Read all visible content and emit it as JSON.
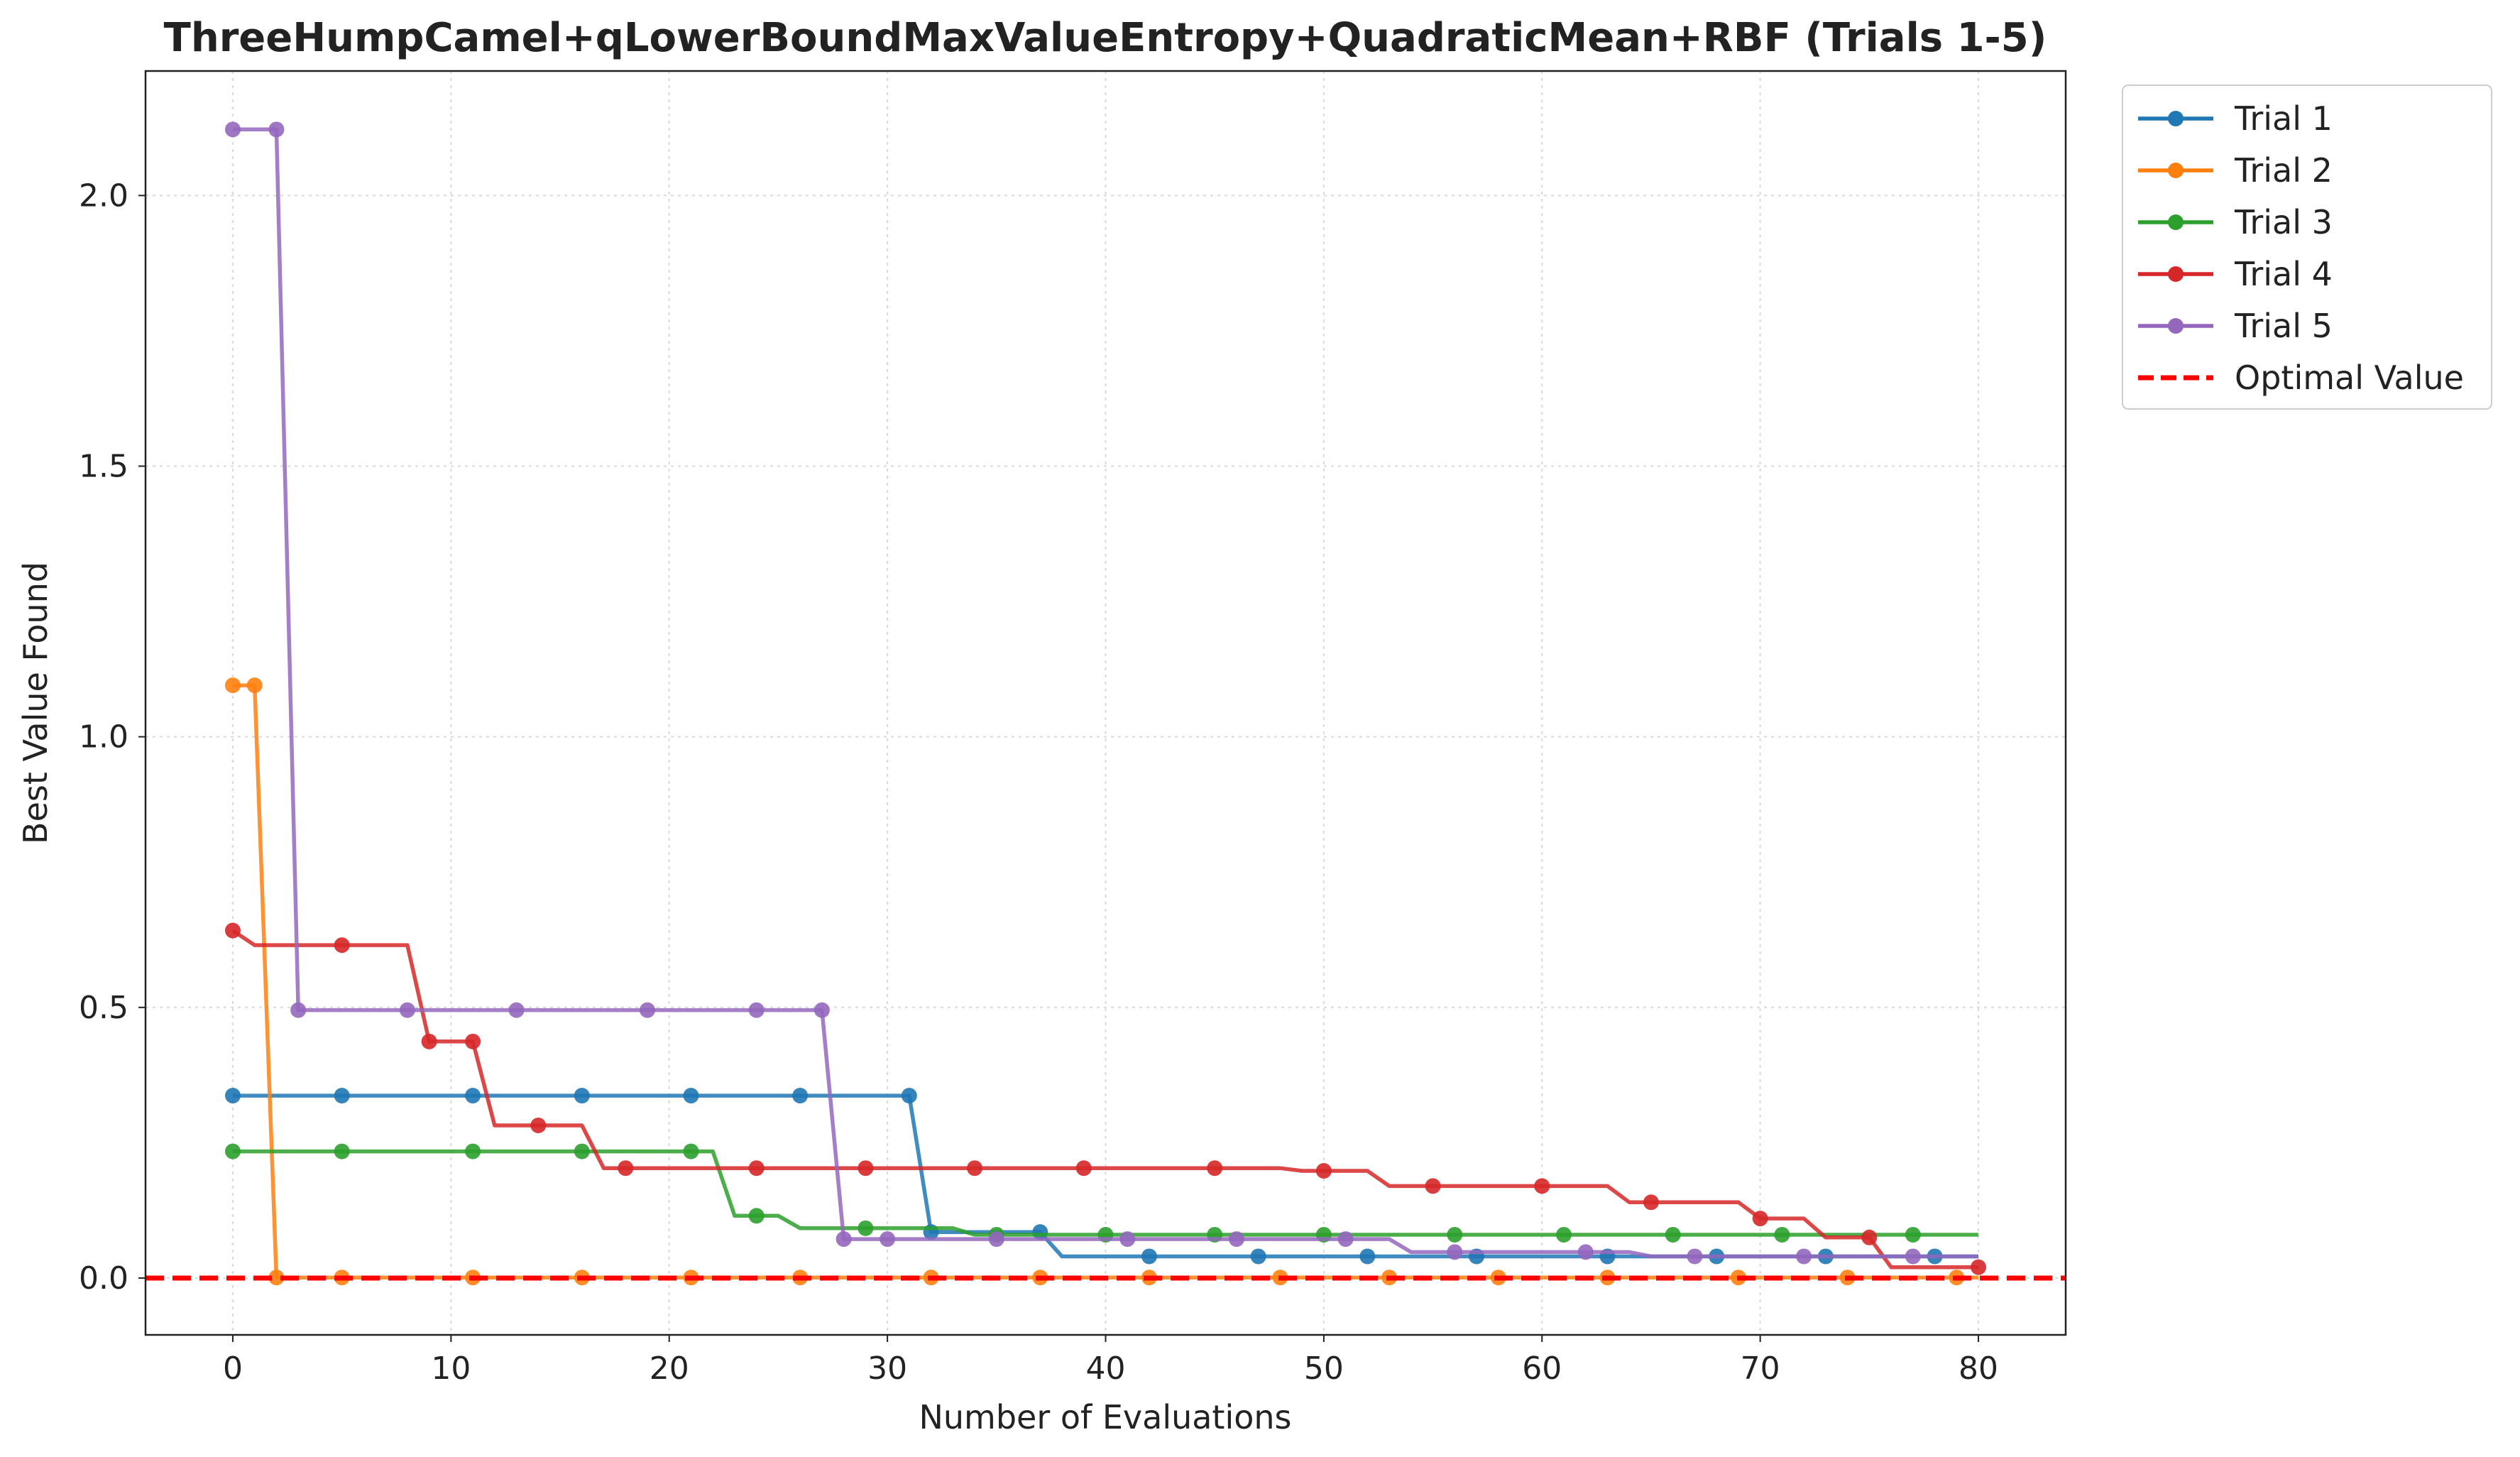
{
  "chart_data": {
    "type": "line",
    "title": "ThreeHumpCamel+qLowerBoundMaxValueEntropy+QuadraticMean+RBF (Trials 1-5)",
    "xlabel": "Number of Evaluations",
    "ylabel": "Best Value Found",
    "xlim": [
      -4,
      84
    ],
    "ylim": [
      -0.105,
      2.23
    ],
    "xticks": [
      0,
      10,
      20,
      30,
      40,
      50,
      60,
      70,
      80
    ],
    "yticks": [
      0.0,
      0.5,
      1.0,
      1.5,
      2.0
    ],
    "xtick_labels": [
      "0",
      "10",
      "20",
      "30",
      "40",
      "50",
      "60",
      "70",
      "80"
    ],
    "ytick_labels": [
      "0.0",
      "0.5",
      "1.0",
      "1.5",
      "2.0"
    ],
    "grid": true,
    "legend_position": "outside-top-right",
    "series": [
      {
        "name": "Trial 1",
        "color": "#1f77b4",
        "points": [
          [
            0,
            0.337
          ],
          [
            31,
            0.337
          ],
          [
            32,
            0.085
          ],
          [
            37,
            0.085
          ],
          [
            38,
            0.04
          ],
          [
            80,
            0.04
          ]
        ],
        "markers": [
          [
            0,
            0.337
          ],
          [
            5,
            0.337
          ],
          [
            11,
            0.337
          ],
          [
            16,
            0.337
          ],
          [
            21,
            0.337
          ],
          [
            26,
            0.337
          ],
          [
            31,
            0.337
          ],
          [
            32,
            0.085
          ],
          [
            37,
            0.085
          ],
          [
            42,
            0.04
          ],
          [
            47,
            0.04
          ],
          [
            52,
            0.04
          ],
          [
            57,
            0.04
          ],
          [
            63,
            0.04
          ],
          [
            68,
            0.04
          ],
          [
            73,
            0.04
          ],
          [
            78,
            0.04
          ]
        ]
      },
      {
        "name": "Trial 2",
        "color": "#ff7f0e",
        "points": [
          [
            0,
            1.095
          ],
          [
            1,
            1.095
          ],
          [
            2,
            0.001
          ],
          [
            80,
            0.001
          ]
        ],
        "markers": [
          [
            0,
            1.095
          ],
          [
            1,
            1.095
          ],
          [
            2,
            0.001
          ],
          [
            5,
            0.001
          ],
          [
            11,
            0.001
          ],
          [
            16,
            0.001
          ],
          [
            21,
            0.001
          ],
          [
            26,
            0.001
          ],
          [
            32,
            0.001
          ],
          [
            37,
            0.001
          ],
          [
            42,
            0.001
          ],
          [
            48,
            0.001
          ],
          [
            53,
            0.001
          ],
          [
            58,
            0.001
          ],
          [
            63,
            0.001
          ],
          [
            69,
            0.001
          ],
          [
            74,
            0.001
          ],
          [
            79,
            0.001
          ]
        ]
      },
      {
        "name": "Trial 3",
        "color": "#2ca02c",
        "points": [
          [
            0,
            0.234
          ],
          [
            22,
            0.234
          ],
          [
            23,
            0.115
          ],
          [
            25,
            0.115
          ],
          [
            26,
            0.092
          ],
          [
            33,
            0.092
          ],
          [
            34,
            0.08
          ],
          [
            80,
            0.08
          ]
        ],
        "markers": [
          [
            0,
            0.234
          ],
          [
            5,
            0.234
          ],
          [
            11,
            0.234
          ],
          [
            16,
            0.234
          ],
          [
            21,
            0.234
          ],
          [
            24,
            0.115
          ],
          [
            29,
            0.092
          ],
          [
            35,
            0.08
          ],
          [
            40,
            0.08
          ],
          [
            45,
            0.08
          ],
          [
            50,
            0.08
          ],
          [
            56,
            0.08
          ],
          [
            61,
            0.08
          ],
          [
            66,
            0.08
          ],
          [
            71,
            0.08
          ],
          [
            77,
            0.08
          ]
        ]
      },
      {
        "name": "Trial 4",
        "color": "#d62728",
        "points": [
          [
            0,
            0.642
          ],
          [
            1,
            0.615
          ],
          [
            8,
            0.615
          ],
          [
            9,
            0.437
          ],
          [
            11,
            0.437
          ],
          [
            12,
            0.282
          ],
          [
            16,
            0.282
          ],
          [
            17,
            0.203
          ],
          [
            48,
            0.203
          ],
          [
            49,
            0.198
          ],
          [
            52,
            0.198
          ],
          [
            53,
            0.17
          ],
          [
            63,
            0.17
          ],
          [
            64,
            0.14
          ],
          [
            69,
            0.14
          ],
          [
            70,
            0.11
          ],
          [
            72,
            0.11
          ],
          [
            73,
            0.075
          ],
          [
            75,
            0.075
          ],
          [
            76,
            0.02
          ],
          [
            80,
            0.02
          ]
        ],
        "markers": [
          [
            0,
            0.642
          ],
          [
            5,
            0.615
          ],
          [
            9,
            0.437
          ],
          [
            11,
            0.437
          ],
          [
            14,
            0.282
          ],
          [
            18,
            0.203
          ],
          [
            24,
            0.203
          ],
          [
            29,
            0.203
          ],
          [
            34,
            0.203
          ],
          [
            39,
            0.203
          ],
          [
            45,
            0.203
          ],
          [
            50,
            0.198
          ],
          [
            55,
            0.17
          ],
          [
            60,
            0.17
          ],
          [
            65,
            0.14
          ],
          [
            70,
            0.11
          ],
          [
            75,
            0.075
          ],
          [
            80,
            0.02
          ]
        ]
      },
      {
        "name": "Trial 5",
        "color": "#9467bd",
        "points": [
          [
            0,
            2.122
          ],
          [
            2,
            2.122
          ],
          [
            3,
            0.495
          ],
          [
            27,
            0.495
          ],
          [
            28,
            0.072
          ],
          [
            53,
            0.072
          ],
          [
            54,
            0.048
          ],
          [
            64,
            0.048
          ],
          [
            65,
            0.04
          ],
          [
            80,
            0.04
          ]
        ],
        "markers": [
          [
            0,
            2.122
          ],
          [
            2,
            2.122
          ],
          [
            3,
            0.495
          ],
          [
            8,
            0.495
          ],
          [
            13,
            0.495
          ],
          [
            19,
            0.495
          ],
          [
            24,
            0.495
          ],
          [
            27,
            0.495
          ],
          [
            28,
            0.072
          ],
          [
            30,
            0.072
          ],
          [
            35,
            0.072
          ],
          [
            41,
            0.072
          ],
          [
            46,
            0.072
          ],
          [
            51,
            0.072
          ],
          [
            56,
            0.048
          ],
          [
            62,
            0.048
          ],
          [
            67,
            0.04
          ],
          [
            72,
            0.04
          ],
          [
            77,
            0.04
          ]
        ]
      }
    ],
    "reference_line": {
      "name": "Optimal Value",
      "y": 0.0,
      "color": "#ff0000",
      "style": "dashed"
    }
  }
}
